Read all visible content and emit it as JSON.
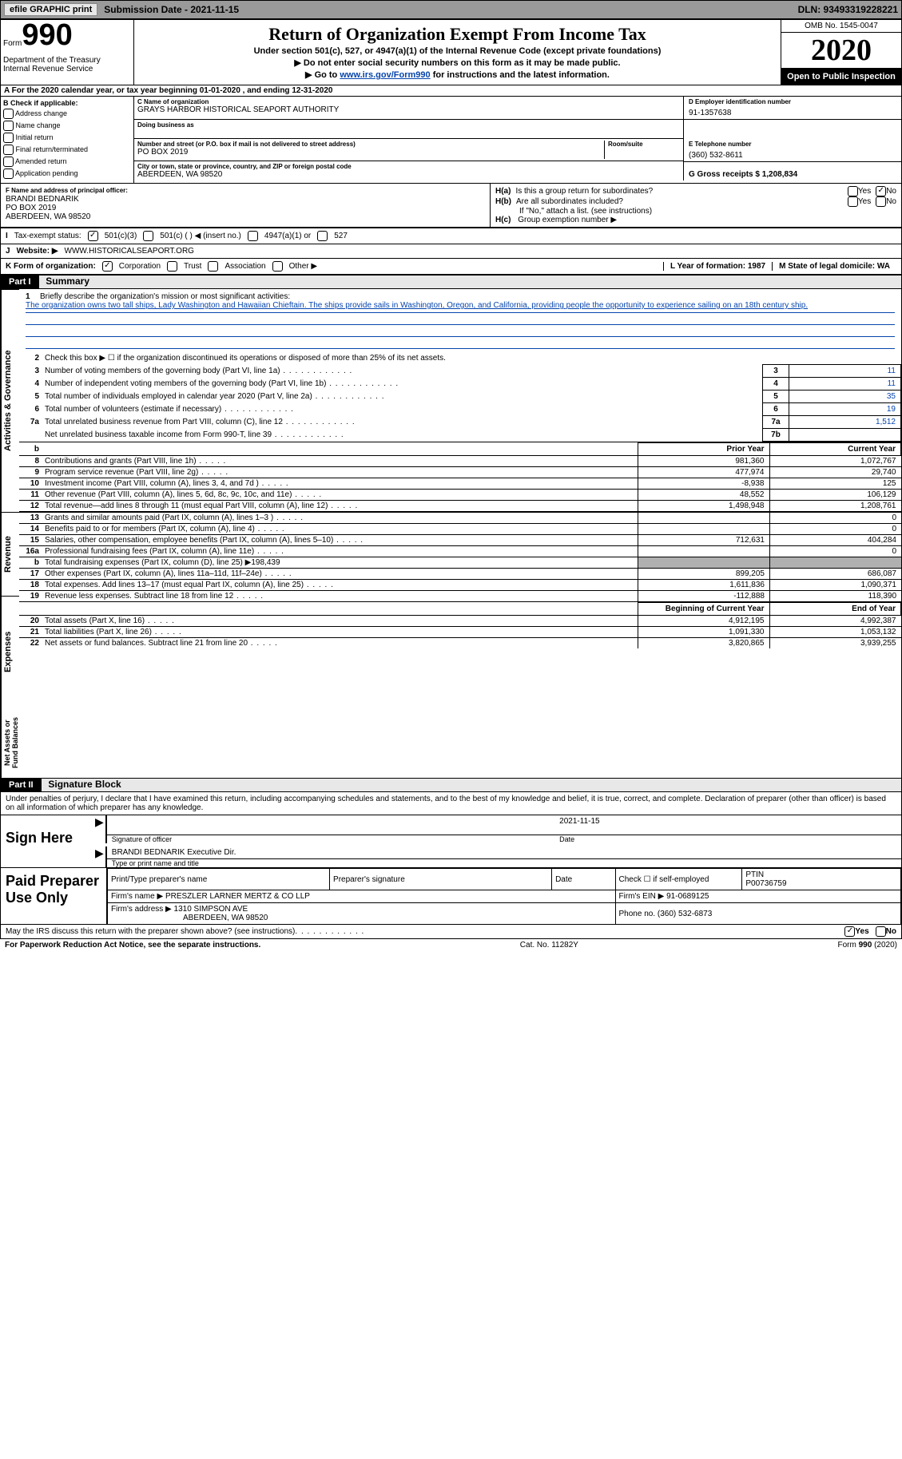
{
  "topbar": {
    "efile_label": "efile GRAPHIC print",
    "submission_label": "Submission Date - 2021-11-15",
    "dln_label": "DLN: 93493319228221"
  },
  "header": {
    "form_word": "Form",
    "form_number": "990",
    "dept": "Department of the Treasury\nInternal Revenue Service",
    "title": "Return of Organization Exempt From Income Tax",
    "subtitle1": "Under section 501(c), 527, or 4947(a)(1) of the Internal Revenue Code (except private foundations)",
    "subtitle2": "▶ Do not enter social security numbers on this form as it may be made public.",
    "subtitle3_pre": "▶ Go to ",
    "subtitle3_link": "www.irs.gov/Form990",
    "subtitle3_post": " for instructions and the latest information.",
    "omb": "OMB No. 1545-0047",
    "year": "2020",
    "open": "Open to Public Inspection"
  },
  "row_a": "A For the 2020 calendar year, or tax year beginning 01-01-2020   , and ending 12-31-2020",
  "section_b": {
    "header": "B Check if applicable:",
    "items": [
      "Address change",
      "Name change",
      "Initial return",
      "Final return/terminated",
      "Amended return",
      "Application pending"
    ]
  },
  "section_c": {
    "label": "C Name of organization",
    "name": "GRAYS HARBOR HISTORICAL SEAPORT AUTHORITY",
    "dba_label": "Doing business as",
    "addr_label": "Number and street (or P.O. box if mail is not delivered to street address)",
    "room_label": "Room/suite",
    "addr": "PO BOX 2019",
    "city_label": "City or town, state or province, country, and ZIP or foreign postal code",
    "city": "ABERDEEN, WA   98520"
  },
  "section_d": {
    "label": "D Employer identification number",
    "ein": "91-1357638"
  },
  "section_e": {
    "label": "E Telephone number",
    "phone": "(360) 532-8611"
  },
  "section_g": {
    "label": "G Gross receipts $ 1,208,834"
  },
  "section_f": {
    "label": "F Name and address of principal officer:",
    "name": "BRANDI BEDNARIK",
    "addr1": "PO BOX 2019",
    "addr2": "ABERDEEN, WA   98520"
  },
  "section_h": {
    "ha_label": "H(a)",
    "ha_text": "Is this a group return for subordinates?",
    "hb_label": "H(b)",
    "hb_text": "Are all subordinates included?",
    "hb_note": "If \"No,\" attach a list. (see instructions)",
    "hc_label": "H(c)",
    "hc_text": "Group exemption number ▶",
    "yes": "Yes",
    "no": "No"
  },
  "tax_exempt": {
    "label_i": "I",
    "label": "Tax-exempt status:",
    "o1": "501(c)(3)",
    "o2": "501(c) (  ) ◀ (insert no.)",
    "o3": "4947(a)(1) or",
    "o4": "527"
  },
  "website": {
    "label_j": "J",
    "label": "Website: ▶",
    "url": "WWW.HISTORICALSEAPORT.ORG"
  },
  "korg": {
    "label_k": "K Form of organization:",
    "o1": "Corporation",
    "o2": "Trust",
    "o3": "Association",
    "o4": "Other ▶",
    "l_label": "L Year of formation: 1987",
    "m_label": "M State of legal domicile: WA"
  },
  "part1": {
    "tag": "Part I",
    "title": "Summary"
  },
  "mission": {
    "line1_label": "1",
    "line1_desc": "Briefly describe the organization's mission or most significant activities:",
    "text": "The organization owns two tall ships, Lady Washington and Hawaiian Chieftain. The ships provide sails in Washington, Oregon, and California, providing people the opportunity to experience sailing on an 18th century ship."
  },
  "governance_lines": [
    {
      "n": "2",
      "desc": "Check this box ▶ ☐  if the organization discontinued its operations or disposed of more than 25% of its net assets."
    },
    {
      "n": "3",
      "desc": "Number of voting members of the governing body (Part VI, line 1a)",
      "box": "3",
      "val": "11"
    },
    {
      "n": "4",
      "desc": "Number of independent voting members of the governing body (Part VI, line 1b)",
      "box": "4",
      "val": "11"
    },
    {
      "n": "5",
      "desc": "Total number of individuals employed in calendar year 2020 (Part V, line 2a)",
      "box": "5",
      "val": "35"
    },
    {
      "n": "6",
      "desc": "Total number of volunteers (estimate if necessary)",
      "box": "6",
      "val": "19"
    },
    {
      "n": "7a",
      "desc": "Total unrelated business revenue from Part VIII, column (C), line 12",
      "box": "7a",
      "val": "1,512"
    },
    {
      "n": "",
      "desc": "Net unrelated business taxable income from Form 990-T, line 39",
      "box": "7b",
      "val": ""
    }
  ],
  "fin_headers": {
    "prior": "Prior Year",
    "curr": "Current Year",
    "beg": "Beginning of Current Year",
    "end": "End of Year"
  },
  "revenue_lines": [
    {
      "n": "8",
      "desc": "Contributions and grants (Part VIII, line 1h)",
      "prior": "981,360",
      "curr": "1,072,767"
    },
    {
      "n": "9",
      "desc": "Program service revenue (Part VIII, line 2g)",
      "prior": "477,974",
      "curr": "29,740"
    },
    {
      "n": "10",
      "desc": "Investment income (Part VIII, column (A), lines 3, 4, and 7d )",
      "prior": "-8,938",
      "curr": "125"
    },
    {
      "n": "11",
      "desc": "Other revenue (Part VIII, column (A), lines 5, 6d, 8c, 9c, 10c, and 11e)",
      "prior": "48,552",
      "curr": "106,129"
    },
    {
      "n": "12",
      "desc": "Total revenue—add lines 8 through 11 (must equal Part VIII, column (A), line 12)",
      "prior": "1,498,948",
      "curr": "1,208,761"
    }
  ],
  "expense_lines": [
    {
      "n": "13",
      "desc": "Grants and similar amounts paid (Part IX, column (A), lines 1–3 )",
      "prior": "",
      "curr": "0"
    },
    {
      "n": "14",
      "desc": "Benefits paid to or for members (Part IX, column (A), line 4)",
      "prior": "",
      "curr": "0"
    },
    {
      "n": "15",
      "desc": "Salaries, other compensation, employee benefits (Part IX, column (A), lines 5–10)",
      "prior": "712,631",
      "curr": "404,284"
    },
    {
      "n": "16a",
      "desc": "Professional fundraising fees (Part IX, column (A), line 11e)",
      "prior": "",
      "curr": "0"
    },
    {
      "n": "b",
      "desc": "Total fundraising expenses (Part IX, column (D), line 25) ▶198,439",
      "shade": true
    },
    {
      "n": "17",
      "desc": "Other expenses (Part IX, column (A), lines 11a–11d, 11f–24e)",
      "prior": "899,205",
      "curr": "686,087"
    },
    {
      "n": "18",
      "desc": "Total expenses. Add lines 13–17 (must equal Part IX, column (A), line 25)",
      "prior": "1,611,836",
      "curr": "1,090,371"
    },
    {
      "n": "19",
      "desc": "Revenue less expenses. Subtract line 18 from line 12",
      "prior": "-112,888",
      "curr": "118,390"
    }
  ],
  "net_lines": [
    {
      "n": "20",
      "desc": "Total assets (Part X, line 16)",
      "prior": "4,912,195",
      "curr": "4,992,387"
    },
    {
      "n": "21",
      "desc": "Total liabilities (Part X, line 26)",
      "prior": "1,091,330",
      "curr": "1,053,132"
    },
    {
      "n": "22",
      "desc": "Net assets or fund balances. Subtract line 21 from line 20",
      "prior": "3,820,865",
      "curr": "3,939,255"
    }
  ],
  "part2": {
    "tag": "Part II",
    "title": "Signature Block",
    "declaration": "Under penalties of perjury, I declare that I have examined this return, including accompanying schedules and statements, and to the best of my knowledge and belief, it is true, correct, and complete. Declaration of preparer (other than officer) is based on all information of which preparer has any knowledge."
  },
  "sign": {
    "label": "Sign Here",
    "sig_label": "Signature of officer",
    "date_label": "Date",
    "date": "2021-11-15",
    "name": "BRANDI BEDNARIK Executive Dir.",
    "name_label": "Type or print name and title"
  },
  "preparer": {
    "label": "Paid Preparer Use Only",
    "h1": "Print/Type preparer's name",
    "h2": "Preparer's signature",
    "h3": "Date",
    "h4_a": "Check ☐ if self-employed",
    "h5": "PTIN",
    "ptin": "P00736759",
    "firm_label": "Firm's name     ▶",
    "firm": "PRESZLER LARNER MERTZ & CO LLP",
    "ein_label": "Firm's EIN ▶",
    "ein": "91-0689125",
    "addr_label": "Firm's address ▶",
    "addr1": "1310 SIMPSON AVE",
    "addr2": "ABERDEEN, WA   98520",
    "phone_label": "Phone no.",
    "phone": "(360) 532-6873"
  },
  "discuss": {
    "text": "May the IRS discuss this return with the preparer shown above? (see instructions)",
    "yes": "Yes",
    "no": "No"
  },
  "footer": {
    "left": "For Paperwork Reduction Act Notice, see the separate instructions.",
    "mid": "Cat. No. 11282Y",
    "right": "Form 990 (2020)"
  },
  "vert_labels": {
    "gov": "Activities & Governance",
    "rev": "Revenue",
    "exp": "Expenses",
    "net": "Net Assets or Fund Balances"
  }
}
